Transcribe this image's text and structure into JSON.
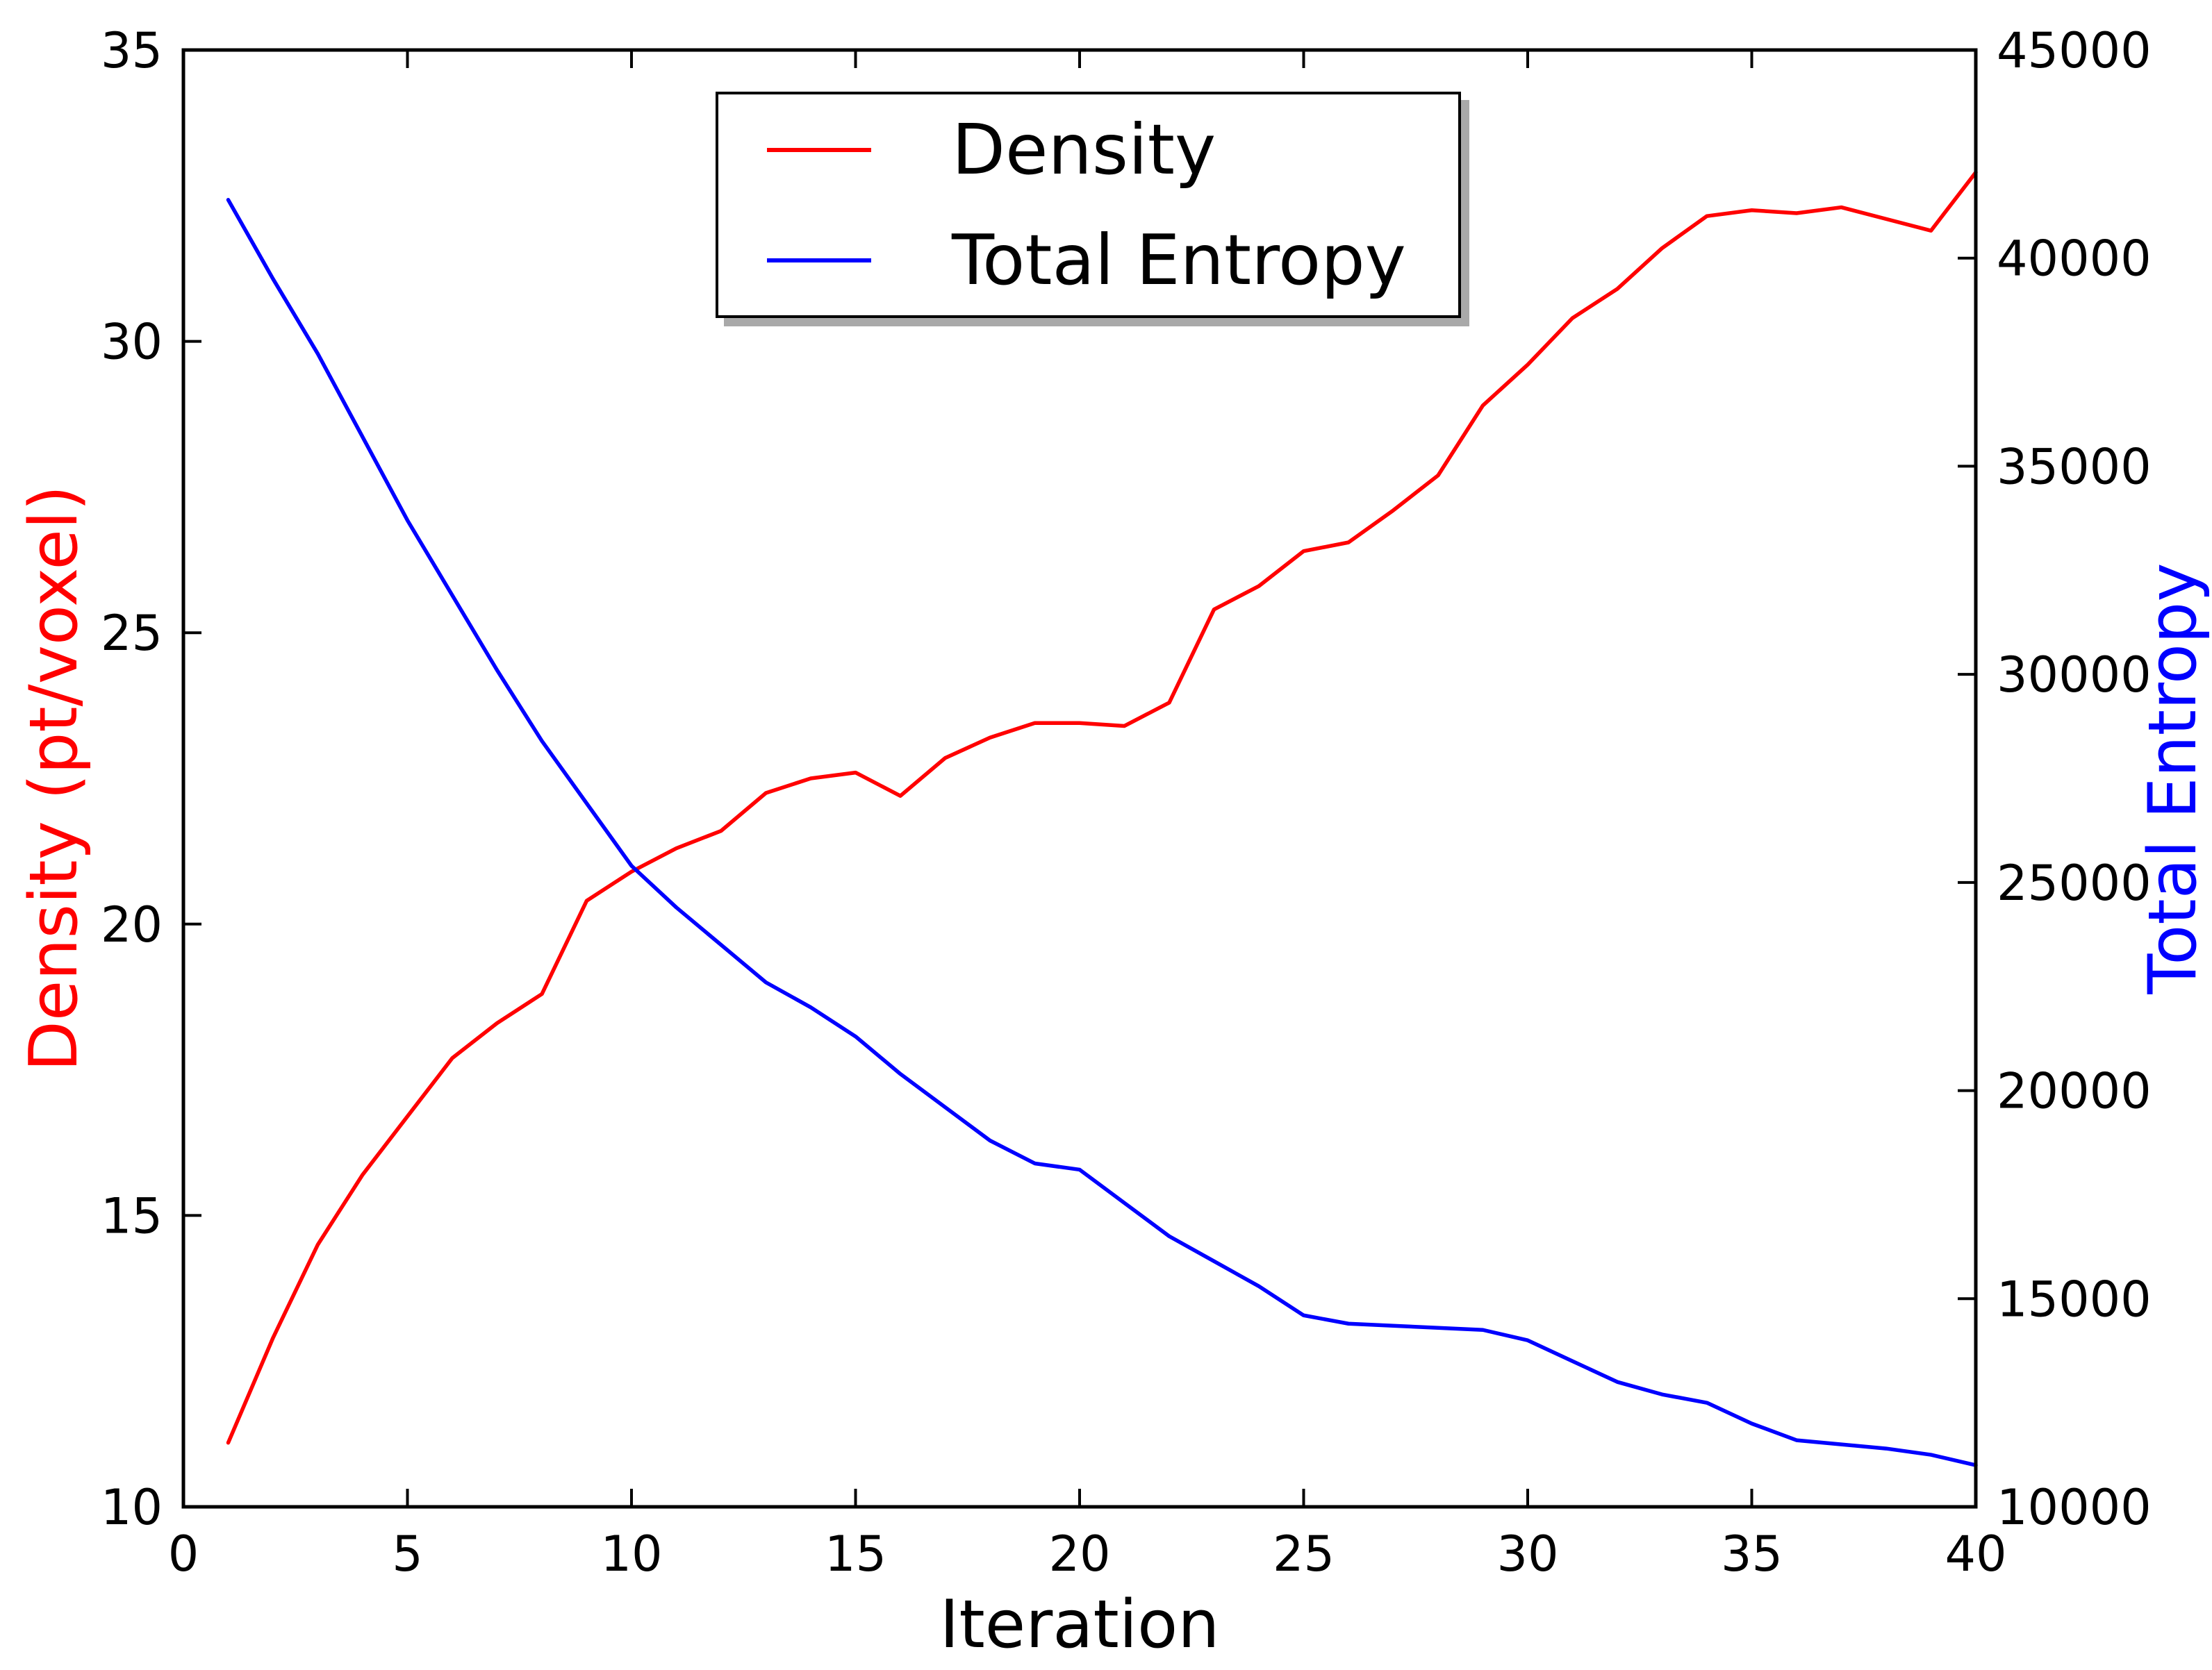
{
  "figure": {
    "background_color": "#ffffff",
    "axis_color": "#000000",
    "tick_label_color": "#000000"
  },
  "chart_data": {
    "type": "line",
    "title": "",
    "xlabel": "Iteration",
    "ylabel_left": "Density (pt/voxel)",
    "ylabel_right": "Total Entropy",
    "ylabel_left_color": "#ff0000",
    "ylabel_right_color": "#0000ff",
    "grid": false,
    "legend_position": "upper center",
    "xlim": [
      0,
      40
    ],
    "ylim_left": [
      10,
      35
    ],
    "ylim_right": [
      10000,
      45000
    ],
    "x_ticks": [
      0,
      5,
      10,
      15,
      20,
      25,
      30,
      35,
      40
    ],
    "y_ticks_left": [
      10,
      15,
      20,
      25,
      30,
      35
    ],
    "y_ticks_right": [
      10000,
      15000,
      20000,
      25000,
      30000,
      35000,
      40000,
      45000
    ],
    "legend": [
      {
        "label": "Density",
        "color": "#ff0000"
      },
      {
        "label": "Total Entropy",
        "color": "#0000ff"
      }
    ],
    "x": [
      1,
      2,
      3,
      4,
      5,
      6,
      7,
      8,
      9,
      10,
      11,
      12,
      13,
      14,
      15,
      16,
      17,
      18,
      19,
      20,
      21,
      22,
      23,
      24,
      25,
      26,
      27,
      28,
      29,
      30,
      31,
      32,
      33,
      34,
      35,
      36,
      37,
      38,
      39,
      40
    ],
    "series": [
      {
        "name": "Density",
        "axis": "left",
        "color": "#ff0000",
        "values": [
          11.1,
          12.9,
          14.5,
          15.7,
          16.7,
          17.7,
          18.3,
          18.8,
          20.4,
          20.9,
          21.3,
          21.6,
          22.25,
          22.5,
          22.6,
          22.2,
          22.85,
          23.2,
          23.45,
          23.45,
          23.4,
          23.8,
          25.4,
          25.8,
          26.4,
          26.55,
          27.1,
          27.7,
          28.9,
          29.6,
          30.4,
          30.9,
          31.6,
          32.15,
          32.25,
          32.2,
          32.3,
          32.1,
          31.9,
          32.9
        ]
      },
      {
        "name": "Total Entropy",
        "axis": "right",
        "color": "#0000ff",
        "values": [
          41400,
          39500,
          37700,
          35700,
          33700,
          31900,
          30100,
          28400,
          26900,
          25400,
          24400,
          23500,
          22600,
          22000,
          21300,
          20400,
          19600,
          18800,
          18250,
          18100,
          17300,
          16500,
          15900,
          15300,
          14600,
          14400,
          14350,
          14300,
          14250,
          14000,
          13500,
          13000,
          12700,
          12500,
          12000,
          11600,
          11500,
          11400,
          11250,
          11000
        ]
      }
    ]
  }
}
